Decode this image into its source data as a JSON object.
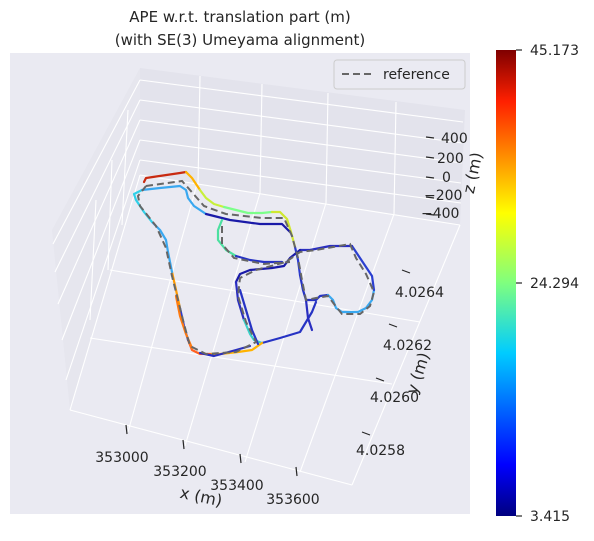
{
  "chart_data": {
    "type": "line",
    "title_line1": "APE w.r.t. translation part (m)",
    "title_line2": "(with SE(3) Umeyama alignment)",
    "xlabel": "x (m)",
    "ylabel": "y (m)",
    "zlabel": "z (m)",
    "x_ticks": [
      "353000",
      "353200",
      "353400",
      "353600"
    ],
    "y_ticks": [
      "4.0264",
      "4.0262",
      "4.0260",
      "4.0258"
    ],
    "z_ticks": [
      "400",
      "200",
      "0",
      "−200",
      "−400"
    ],
    "legend": {
      "entries": [
        "reference"
      ],
      "placement": "top-right"
    },
    "colorbar": {
      "min": 3.415,
      "mid": 24.294,
      "max": 45.173,
      "tick_labels": [
        "45.173",
        "24.294",
        "3.415"
      ],
      "colormap": "jet"
    },
    "background_color": "#eaeaf2",
    "grid": true
  }
}
